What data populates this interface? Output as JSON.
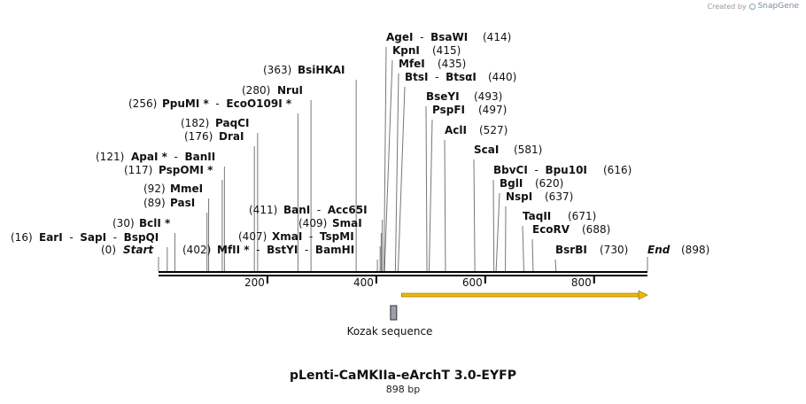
{
  "credit": {
    "prefix": "Created by",
    "brand": "SnapGene"
  },
  "title": "pLenti-CaMKIIa-eArchT 3.0-EYFP",
  "subtitle": "898 bp",
  "feature_label": "Kozak sequence",
  "sequence_length": 898,
  "ruler_ticks": [
    {
      "label": "200",
      "pos": 200
    },
    {
      "label": "400",
      "pos": 400
    },
    {
      "label": "600",
      "pos": 600
    },
    {
      "label": "800",
      "pos": 800
    }
  ],
  "feature": {
    "name": "Kozak sequence",
    "start": 426,
    "end": 436
  },
  "orf": {
    "start": 430,
    "end": 898,
    "color": "#f0b800"
  },
  "sites": [
    {
      "pos": 16,
      "posText": "(16)",
      "names": [
        {
          "t": "EarI"
        },
        {
          "t": " - "
        },
        {
          "t": "SapI"
        },
        {
          "t": " - "
        },
        {
          "t": "BspQI"
        }
      ],
      "posLeft": true
    },
    {
      "pos": 0,
      "posText": "(0)",
      "names": [
        {
          "t": "Start",
          "ital": true
        }
      ],
      "posLeft": true
    },
    {
      "pos": 30,
      "posText": "(30)",
      "names": [
        {
          "t": "BclI *"
        }
      ],
      "posLeft": true
    },
    {
      "pos": 89,
      "posText": "(89)",
      "names": [
        {
          "t": "PasI"
        }
      ],
      "posLeft": true
    },
    {
      "pos": 92,
      "posText": "(92)",
      "names": [
        {
          "t": "MmeI"
        }
      ],
      "posLeft": true
    },
    {
      "pos": 117,
      "posText": "(117)",
      "names": [
        {
          "t": "PspOMI *"
        }
      ],
      "posLeft": true
    },
    {
      "pos": 121,
      "posText": "(121)",
      "names": [
        {
          "t": "ApaI *"
        },
        {
          "t": " - "
        },
        {
          "t": "BanII"
        }
      ],
      "posLeft": true
    },
    {
      "pos": 176,
      "posText": "(176)",
      "names": [
        {
          "t": "DraI"
        }
      ],
      "posLeft": true
    },
    {
      "pos": 182,
      "posText": "(182)",
      "names": [
        {
          "t": "PaqCI"
        }
      ],
      "posLeft": true
    },
    {
      "pos": 256,
      "posText": "(256)",
      "names": [
        {
          "t": "PpuMI *"
        },
        {
          "t": " - "
        },
        {
          "t": "EcoO109I *"
        }
      ],
      "posLeft": true
    },
    {
      "pos": 280,
      "posText": "(280)",
      "names": [
        {
          "t": "NruI"
        }
      ],
      "posLeft": true
    },
    {
      "pos": 363,
      "posText": "(363)",
      "names": [
        {
          "t": "BsiHKAI"
        }
      ],
      "posLeft": true
    },
    {
      "pos": 402,
      "posText": "(402)",
      "names": [
        {
          "t": "MfII *"
        },
        {
          "t": " - "
        },
        {
          "t": "BstYI"
        },
        {
          "t": " - "
        },
        {
          "t": "BamHI"
        }
      ],
      "posLeft": true
    },
    {
      "pos": 407,
      "posText": "(407)",
      "names": [
        {
          "t": "XmaI"
        },
        {
          "t": " - "
        },
        {
          "t": "TspMI"
        }
      ],
      "posLeft": true
    },
    {
      "pos": 409,
      "posText": "(409)",
      "names": [
        {
          "t": "SmaI"
        }
      ],
      "posLeft": true
    },
    {
      "pos": 411,
      "posText": "(411)",
      "names": [
        {
          "t": "BanI"
        },
        {
          "t": " - "
        },
        {
          "t": "Acc65I"
        }
      ],
      "posLeft": true
    },
    {
      "pos": 414,
      "posText": "(414)",
      "names": [
        {
          "t": "AgeI"
        },
        {
          "t": " - "
        },
        {
          "t": "BsaWI"
        }
      ],
      "posLeft": false
    },
    {
      "pos": 415,
      "posText": "(415)",
      "names": [
        {
          "t": "KpnI"
        }
      ],
      "posLeft": false
    },
    {
      "pos": 435,
      "posText": "(435)",
      "names": [
        {
          "t": "MfeI"
        }
      ],
      "posLeft": false
    },
    {
      "pos": 440,
      "posText": "(440)",
      "names": [
        {
          "t": "BtsI"
        },
        {
          "t": " - "
        },
        {
          "t": "BtsαI"
        }
      ],
      "posLeft": false
    },
    {
      "pos": 493,
      "posText": "(493)",
      "names": [
        {
          "t": "BseYI"
        }
      ],
      "posLeft": false
    },
    {
      "pos": 497,
      "posText": "(497)",
      "names": [
        {
          "t": "PspFI"
        }
      ],
      "posLeft": false
    },
    {
      "pos": 527,
      "posText": "(527)",
      "names": [
        {
          "t": "AclI"
        }
      ],
      "posLeft": false
    },
    {
      "pos": 581,
      "posText": "(581)",
      "names": [
        {
          "t": "ScaI"
        }
      ],
      "posLeft": false
    },
    {
      "pos": 616,
      "posText": "(616)",
      "names": [
        {
          "t": "BbvCI"
        },
        {
          "t": " - "
        },
        {
          "t": "Bpu10I"
        }
      ],
      "posLeft": false
    },
    {
      "pos": 620,
      "posText": "(620)",
      "names": [
        {
          "t": "BglI"
        }
      ],
      "posLeft": false
    },
    {
      "pos": 637,
      "posText": "(637)",
      "names": [
        {
          "t": "NspI"
        }
      ],
      "posLeft": false
    },
    {
      "pos": 671,
      "posText": "(671)",
      "names": [
        {
          "t": "TaqII"
        }
      ],
      "posLeft": false
    },
    {
      "pos": 688,
      "posText": "(688)",
      "names": [
        {
          "t": "EcoRV"
        }
      ],
      "posLeft": false
    },
    {
      "pos": 730,
      "posText": "(730)",
      "names": [
        {
          "t": "BsrBI"
        }
      ],
      "posLeft": false
    },
    {
      "pos": 898,
      "posText": "(898)",
      "names": [
        {
          "t": "End",
          "ital": true
        }
      ],
      "posLeft": false
    }
  ]
}
